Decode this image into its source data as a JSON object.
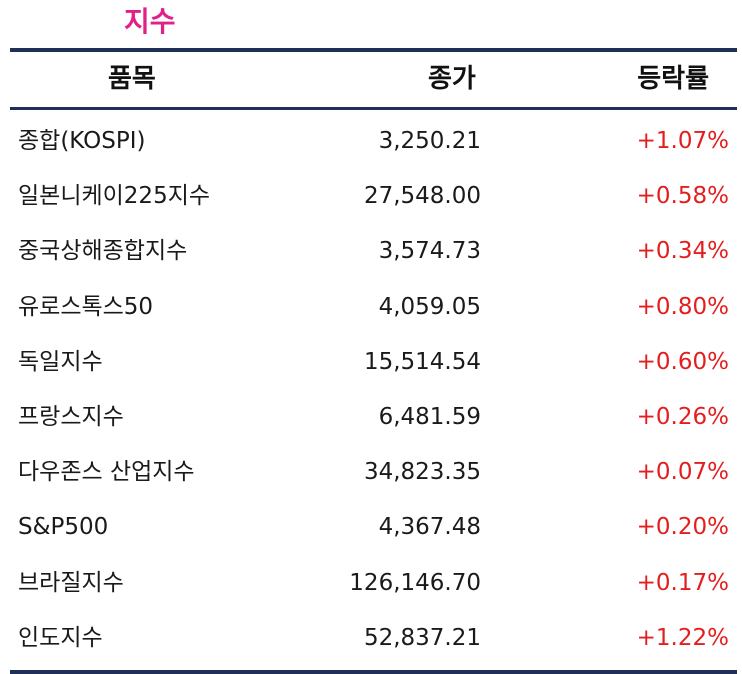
{
  "title": "지수",
  "header": {
    "name": "품목",
    "close": "종가",
    "change": "등락률"
  },
  "colors": {
    "title": "#e0218a",
    "rule": "#1f2f57",
    "positive": "#e41e1e"
  },
  "rows": [
    {
      "name": "종합(KOSPI)",
      "close": "3,250.21",
      "change": "+1.07%"
    },
    {
      "name": "일본니케이225지수",
      "close": "27,548.00",
      "change": "+0.58%"
    },
    {
      "name": "중국상해종합지수",
      "close": "3,574.73",
      "change": "+0.34%"
    },
    {
      "name": "유로스톡스50",
      "close": "4,059.05",
      "change": "+0.80%"
    },
    {
      "name": "독일지수",
      "close": "15,514.54",
      "change": "+0.60%"
    },
    {
      "name": "프랑스지수",
      "close": "6,481.59",
      "change": "+0.26%"
    },
    {
      "name": "다우존스 산업지수",
      "close": "34,823.35",
      "change": "+0.07%"
    },
    {
      "name": "S&P500",
      "close": "4,367.48",
      "change": "+0.20%"
    },
    {
      "name": "브라질지수",
      "close": "126,146.70",
      "change": "+0.17%"
    },
    {
      "name": "인도지수",
      "close": "52,837.21",
      "change": "+1.22%"
    }
  ]
}
